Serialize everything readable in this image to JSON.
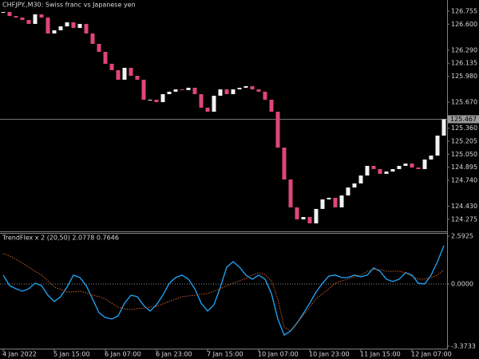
{
  "chart_data": [
    {
      "type": "candlestick",
      "title": "CHFJPY.,M30:  Swiss franc vs Japanese yen",
      "up_color": "#f2f2f2",
      "down_color": "#e0457b",
      "values": [
        126.745,
        126.697,
        126.679,
        126.65,
        126.603,
        126.717,
        126.679,
        126.489,
        126.527,
        126.574,
        126.622,
        126.555,
        126.603,
        126.489,
        126.365,
        126.27,
        126.128,
        126.052,
        125.938,
        126.08,
        125.985,
        125.938,
        125.7,
        125.7,
        125.671,
        125.766,
        125.795,
        125.823,
        125.814,
        125.842,
        125.766,
        125.605,
        125.557,
        125.747,
        125.823,
        125.766,
        125.823,
        125.842,
        125.861,
        125.823,
        125.795,
        125.7,
        125.557,
        125.129,
        124.749,
        124.417,
        124.274,
        124.302,
        124.226,
        124.398,
        124.512,
        124.531,
        124.417,
        124.559,
        124.654,
        124.702,
        124.797,
        124.911,
        124.873,
        124.816,
        124.844,
        124.873,
        124.911,
        124.939,
        124.892,
        124.873,
        124.987,
        125.034,
        125.272,
        125.467
      ],
      "current_price": 125.467,
      "ylim": [
        124.131,
        126.888
      ],
      "yticks": [
        126.755,
        {
          "value": 126.6,
          "label": "126.600"
        },
        {
          "value": 126.29,
          "label": "126.290"
        },
        126.135,
        {
          "value": 125.98,
          "label": "125.980"
        },
        {
          "value": 125.67,
          "label": "125.670"
        },
        {
          "value": 125.36,
          "label": "125.360"
        },
        125.205,
        {
          "value": 125.05,
          "label": "125.050"
        },
        124.895,
        {
          "value": 124.74,
          "label": "124.740"
        },
        {
          "value": 124.43,
          "label": "124.430"
        },
        124.275
      ]
    },
    {
      "type": "line",
      "title": "TrendFlex x 2 (20,50) 2.0778 0.7646",
      "categories": [
        "4 Jan 2022",
        null,
        null,
        null,
        null,
        null,
        null,
        null,
        "5 Jan 15:00",
        null,
        null,
        null,
        null,
        null,
        null,
        null,
        "6 Jan 07:00",
        null,
        null,
        null,
        null,
        null,
        null,
        null,
        "6 Jan 23:00",
        null,
        null,
        null,
        null,
        null,
        null,
        null,
        "7 Jan 15:00",
        null,
        null,
        null,
        null,
        null,
        null,
        null,
        "10 Jan 07:00",
        null,
        null,
        null,
        null,
        null,
        null,
        null,
        "10 Jan 23:00",
        null,
        null,
        null,
        null,
        null,
        null,
        null,
        "11 Jan 15:00",
        null,
        null,
        null,
        null,
        null,
        null,
        null,
        "12 Jan 07:00",
        null,
        null,
        null,
        null,
        null
      ],
      "series": [
        {
          "color": "#1ea8ff",
          "style": "solid",
          "values": [
            0.48,
            -0.09,
            -0.26,
            -0.39,
            -0.26,
            0.04,
            -0.09,
            -0.61,
            -0.95,
            -0.69,
            -0.17,
            0.48,
            0.35,
            -0.09,
            -0.82,
            -1.56,
            -1.82,
            -1.9,
            -1.73,
            -1.04,
            -0.61,
            -0.69,
            -1.17,
            -1.47,
            -1.13,
            -0.61,
            0.04,
            0.35,
            0.48,
            0.26,
            -0.26,
            -1.04,
            -1.47,
            -1.13,
            -0.17,
            0.91,
            1.21,
            0.91,
            0.48,
            0.26,
            0.48,
            0.26,
            -0.52,
            -1.9,
            -2.77,
            -2.55,
            -2.12,
            -1.6,
            -1.04,
            -0.43,
            0.04,
            0.43,
            0.48,
            0.35,
            0.35,
            0.48,
            0.39,
            0.48,
            0.87,
            0.69,
            0.26,
            0.13,
            0.26,
            0.61,
            0.48,
            0.04,
            0.0,
            0.48,
            1.21,
            2.08
          ]
        },
        {
          "color": "#c8602c",
          "style": "dotted",
          "values": [
            1.65,
            1.52,
            1.34,
            1.13,
            0.91,
            0.69,
            0.48,
            0.17,
            -0.17,
            -0.3,
            -0.43,
            -0.43,
            -0.39,
            -0.48,
            -0.61,
            -0.69,
            -0.82,
            -1.04,
            -1.26,
            -1.34,
            -1.39,
            -1.34,
            -1.3,
            -1.26,
            -1.21,
            -1.08,
            -0.95,
            -0.82,
            -0.69,
            -0.65,
            -0.61,
            -0.56,
            -0.52,
            -0.39,
            -0.26,
            -0.09,
            0.04,
            0.17,
            0.3,
            0.48,
            0.61,
            0.52,
            0.17,
            -0.82,
            -2.34,
            -2.55,
            -2.12,
            -1.69,
            -1.26,
            -0.82,
            -0.52,
            -0.26,
            0.04,
            0.17,
            0.26,
            0.39,
            0.48,
            0.69,
            0.78,
            0.78,
            0.69,
            0.69,
            0.69,
            0.61,
            0.43,
            0.26,
            0.26,
            0.35,
            0.48,
            0.76
          ]
        }
      ],
      "level": 0,
      "ylim": [
        -3.55,
        2.766
      ],
      "yticks": [
        2.5925,
        {
          "value": 0,
          "label": "0.0000"
        },
        -3.3733
      ]
    }
  ]
}
